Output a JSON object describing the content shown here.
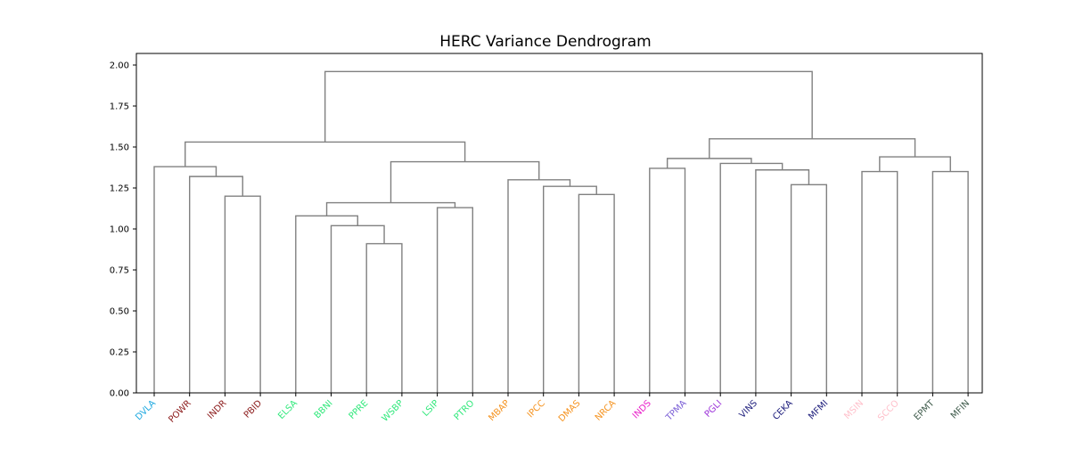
{
  "chart_data": {
    "type": "dendrogram",
    "title": "HERC Variance Dendrogram",
    "xlabel": "",
    "ylabel": "",
    "ylim": [
      0,
      2.0
    ],
    "yticks": [
      "0.00",
      "0.25",
      "0.50",
      "0.75",
      "1.00",
      "1.25",
      "1.50",
      "1.75",
      "2.00"
    ],
    "grid": false,
    "link_color": "#808080",
    "leaves": [
      {
        "label": "DVLA",
        "color": "#1aa7e0"
      },
      {
        "label": "POWR",
        "color": "#8b1a1a"
      },
      {
        "label": "INDR",
        "color": "#8b1a1a"
      },
      {
        "label": "PBID",
        "color": "#8b1a1a"
      },
      {
        "label": "ELSA",
        "color": "#2ee87a"
      },
      {
        "label": "BBNI",
        "color": "#2ee87a"
      },
      {
        "label": "PPRE",
        "color": "#2ee87a"
      },
      {
        "label": "WSBP",
        "color": "#2ee87a"
      },
      {
        "label": "LSIP",
        "color": "#2ee87a"
      },
      {
        "label": "PTRO",
        "color": "#2ee87a"
      },
      {
        "label": "MBAP",
        "color": "#f5921e"
      },
      {
        "label": "IPCC",
        "color": "#f5921e"
      },
      {
        "label": "DMAS",
        "color": "#f5921e"
      },
      {
        "label": "NRCA",
        "color": "#f5921e"
      },
      {
        "label": "INDS",
        "color": "#e81ec8"
      },
      {
        "label": "TPMA",
        "color": "#7b5fd6"
      },
      {
        "label": "PGLI",
        "color": "#9b30d9"
      },
      {
        "label": "VINS",
        "color": "#1a1a7a"
      },
      {
        "label": "CEKA",
        "color": "#1a1a7a"
      },
      {
        "label": "MFMI",
        "color": "#1a1a7a"
      },
      {
        "label": "MSIN",
        "color": "#ffc0cb"
      },
      {
        "label": "SCCO",
        "color": "#ffc0cb"
      },
      {
        "label": "EPMT",
        "color": "#3d5a4a"
      },
      {
        "label": "MFIN",
        "color": "#3d5a4a"
      }
    ],
    "merges": [
      {
        "left": "PPRE",
        "right": "WSBP",
        "height": 0.91
      },
      {
        "left": "BBNI",
        "right": "c0",
        "height": 1.02
      },
      {
        "left": "ELSA",
        "right": "c1",
        "height": 1.08
      },
      {
        "left": "LSIP",
        "right": "PTRO",
        "height": 1.13
      },
      {
        "left": "c2",
        "right": "c3",
        "height": 1.16
      },
      {
        "left": "INDR",
        "right": "PBID",
        "height": 1.2
      },
      {
        "left": "DMAS",
        "right": "NRCA",
        "height": 1.21
      },
      {
        "left": "IPCC",
        "right": "c6",
        "height": 1.26
      },
      {
        "left": "CEKA",
        "right": "MFMI",
        "height": 1.27
      },
      {
        "left": "MBAP",
        "right": "c7",
        "height": 1.3
      },
      {
        "left": "POWR",
        "right": "c5",
        "height": 1.32
      },
      {
        "left": "MSIN",
        "right": "SCCO",
        "height": 1.35
      },
      {
        "left": "EPMT",
        "right": "MFIN",
        "height": 1.35
      },
      {
        "left": "VINS",
        "right": "c8",
        "height": 1.36
      },
      {
        "left": "INDS",
        "right": "TPMA",
        "height": 1.37
      },
      {
        "left": "DVLA",
        "right": "c10",
        "height": 1.38
      },
      {
        "left": "PGLI",
        "right": "c13",
        "height": 1.4
      },
      {
        "left": "c4",
        "right": "c9",
        "height": 1.41
      },
      {
        "left": "c14",
        "right": "c16",
        "height": 1.43
      },
      {
        "left": "c11",
        "right": "c12",
        "height": 1.44
      },
      {
        "left": "c15",
        "right": "c17",
        "height": 1.53
      },
      {
        "left": "c18",
        "right": "c19",
        "height": 1.55
      },
      {
        "left": "c20",
        "right": "c21",
        "height": 1.96
      }
    ]
  }
}
